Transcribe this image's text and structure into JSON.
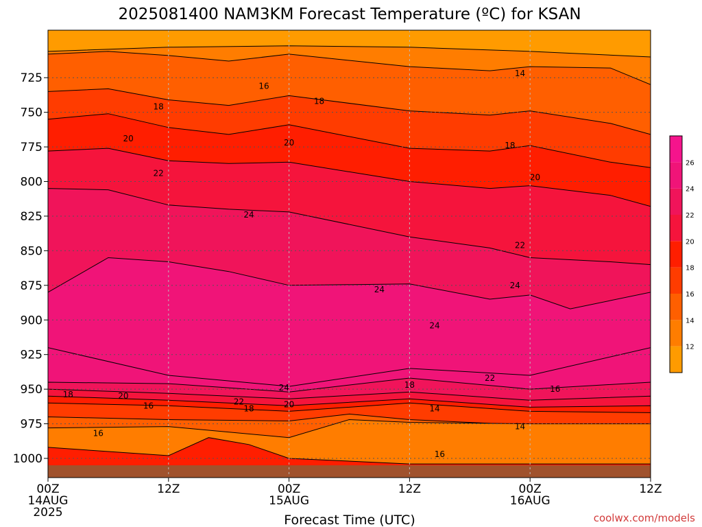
{
  "chart_data": {
    "type": "heatmap",
    "title": "2025081400 NAM3KM Forecast Temperature (ºC) for KSAN",
    "xlabel": "Forecast Time (UTC)",
    "ylabel": "",
    "credit": "coolwx.com/models",
    "x_range_hours": [
      0,
      60
    ],
    "y_range_hpa": [
      700,
      1020
    ],
    "y_ticks": [
      {
        "p": 725,
        "label": "725"
      },
      {
        "p": 750,
        "label": "750"
      },
      {
        "p": 775,
        "label": "775"
      },
      {
        "p": 800,
        "label": "800"
      },
      {
        "p": 825,
        "label": "825"
      },
      {
        "p": 850,
        "label": "850"
      },
      {
        "p": 875,
        "label": "875"
      },
      {
        "p": 900,
        "label": "900"
      },
      {
        "p": 925,
        "label": "925"
      },
      {
        "p": 950,
        "label": "950"
      },
      {
        "p": 975,
        "label": "975"
      },
      {
        "p": 1000,
        "label": "1000"
      }
    ],
    "x_ticks": [
      {
        "h": 0,
        "lines": [
          "00Z",
          "14AUG",
          "2025"
        ]
      },
      {
        "h": 12,
        "lines": [
          "12Z"
        ]
      },
      {
        "h": 24,
        "lines": [
          "00Z",
          "15AUG"
        ]
      },
      {
        "h": 36,
        "lines": [
          "12Z"
        ]
      },
      {
        "h": 48,
        "lines": [
          "00Z",
          "16AUG"
        ]
      },
      {
        "h": 60,
        "lines": [
          "12Z"
        ]
      }
    ],
    "grid": "dotted",
    "colorbar": {
      "placement": "right",
      "bins": [
        {
          "min": 10,
          "max": 12,
          "color": "#ff9b00"
        },
        {
          "min": 12,
          "max": 14,
          "color": "#ff7d00"
        },
        {
          "min": 14,
          "max": 16,
          "color": "#ff5f00"
        },
        {
          "min": 16,
          "max": 18,
          "color": "#ff3c00"
        },
        {
          "min": 18,
          "max": 20,
          "color": "#ff1e00"
        },
        {
          "min": 20,
          "max": 22,
          "color": "#f5143c"
        },
        {
          "min": 22,
          "max": 24,
          "color": "#f0145a"
        },
        {
          "min": 24,
          "max": 26,
          "color": "#f01478"
        },
        {
          "min": 26,
          "max": 28,
          "color": "#f5148c"
        }
      ],
      "tick_labels": [
        "12",
        "14",
        "16",
        "18",
        "20",
        "22",
        "24",
        "26"
      ]
    },
    "ground_color": "#a0522d",
    "ground_top_hpa_approx": 1005,
    "temperature_bands": [
      {
        "color": "#ff7d00",
        "top": [
          [
            0,
            706
          ],
          [
            12,
            703
          ],
          [
            24,
            702
          ],
          [
            36,
            703
          ],
          [
            48,
            706
          ],
          [
            60,
            710
          ]
        ]
      },
      {
        "color": "#ff5f00",
        "top": [
          [
            0,
            708
          ],
          [
            6,
            706
          ],
          [
            12,
            709
          ],
          [
            18,
            713
          ],
          [
            24,
            708
          ],
          [
            36,
            717
          ],
          [
            44,
            720
          ],
          [
            48,
            717
          ],
          [
            56,
            718
          ],
          [
            60,
            730
          ]
        ]
      },
      {
        "color": "#ff3c00",
        "top": [
          [
            0,
            735
          ],
          [
            6,
            733
          ],
          [
            12,
            741
          ],
          [
            18,
            745
          ],
          [
            24,
            738
          ],
          [
            36,
            749
          ],
          [
            44,
            752
          ],
          [
            48,
            749
          ],
          [
            56,
            758
          ],
          [
            60,
            766
          ]
        ]
      },
      {
        "color": "#ff1e00",
        "top": [
          [
            0,
            755
          ],
          [
            6,
            751
          ],
          [
            12,
            761
          ],
          [
            18,
            766
          ],
          [
            24,
            759
          ],
          [
            36,
            776
          ],
          [
            44,
            778
          ],
          [
            48,
            774
          ],
          [
            56,
            786
          ],
          [
            60,
            790
          ]
        ]
      },
      {
        "color": "#f5143c",
        "top": [
          [
            0,
            778
          ],
          [
            6,
            776
          ],
          [
            12,
            785
          ],
          [
            18,
            787
          ],
          [
            24,
            786
          ],
          [
            36,
            800
          ],
          [
            44,
            805
          ],
          [
            48,
            803
          ],
          [
            56,
            810
          ],
          [
            60,
            818
          ]
        ]
      },
      {
        "color": "#f0145a",
        "top": [
          [
            0,
            805
          ],
          [
            6,
            806
          ],
          [
            12,
            817
          ],
          [
            18,
            820
          ],
          [
            24,
            822
          ],
          [
            36,
            840
          ],
          [
            44,
            848
          ],
          [
            48,
            855
          ],
          [
            56,
            858
          ],
          [
            60,
            860
          ]
        ]
      },
      {
        "color": "#f01478",
        "top": [
          [
            0,
            880
          ],
          [
            6,
            855
          ],
          [
            12,
            858
          ],
          [
            18,
            865
          ],
          [
            24,
            875
          ],
          [
            36,
            874
          ],
          [
            44,
            885
          ],
          [
            48,
            882
          ],
          [
            52,
            892
          ],
          [
            60,
            880
          ]
        ]
      }
    ],
    "low_level_bands": [
      {
        "color": "#f01478",
        "top": [
          [
            0,
            920
          ],
          [
            12,
            940
          ],
          [
            24,
            948
          ],
          [
            36,
            935
          ],
          [
            48,
            940
          ],
          [
            60,
            920
          ]
        ]
      },
      {
        "color": "#f0145a",
        "top": [
          [
            0,
            945
          ],
          [
            12,
            946
          ],
          [
            24,
            952
          ],
          [
            36,
            942
          ],
          [
            48,
            950
          ],
          [
            60,
            945
          ]
        ]
      },
      {
        "color": "#f5143c",
        "top": [
          [
            0,
            950
          ],
          [
            12,
            953
          ],
          [
            24,
            957
          ],
          [
            36,
            952
          ],
          [
            48,
            958
          ],
          [
            60,
            955
          ]
        ]
      },
      {
        "color": "#ff1e00",
        "top": [
          [
            0,
            955
          ],
          [
            12,
            958
          ],
          [
            24,
            962
          ],
          [
            36,
            957
          ],
          [
            48,
            963
          ],
          [
            60,
            962
          ]
        ]
      },
      {
        "color": "#ff3c00",
        "top": [
          [
            0,
            960
          ],
          [
            12,
            962
          ],
          [
            24,
            966
          ],
          [
            36,
            960
          ],
          [
            48,
            966
          ],
          [
            60,
            967
          ]
        ]
      },
      {
        "color": "#ff5f00",
        "top": [
          [
            0,
            970
          ],
          [
            12,
            972
          ],
          [
            24,
            973
          ],
          [
            30,
            968
          ],
          [
            36,
            972
          ],
          [
            48,
            976
          ],
          [
            60,
            978
          ]
        ]
      },
      {
        "color": "#ff7d00",
        "top": [
          [
            0,
            978
          ],
          [
            12,
            977
          ],
          [
            24,
            985
          ],
          [
            30,
            972
          ],
          [
            36,
            974
          ],
          [
            48,
            975
          ],
          [
            60,
            975
          ]
        ]
      },
      {
        "color": "#ff1e00",
        "top": [
          [
            0,
            992
          ],
          [
            12,
            998
          ],
          [
            16,
            985
          ],
          [
            20,
            990
          ],
          [
            24,
            1000
          ],
          [
            36,
            1004
          ],
          [
            60,
            1004
          ]
        ]
      }
    ],
    "contour_labels": [
      {
        "text": "16",
        "h": 21.5,
        "p": 731
      },
      {
        "text": "14",
        "h": 47,
        "p": 722
      },
      {
        "text": "18",
        "h": 11,
        "p": 746
      },
      {
        "text": "18",
        "h": 27,
        "p": 742
      },
      {
        "text": "20",
        "h": 8,
        "p": 769
      },
      {
        "text": "20",
        "h": 24,
        "p": 772
      },
      {
        "text": "18",
        "h": 46,
        "p": 774
      },
      {
        "text": "22",
        "h": 11,
        "p": 794
      },
      {
        "text": "20",
        "h": 48.5,
        "p": 797
      },
      {
        "text": "24",
        "h": 20,
        "p": 824
      },
      {
        "text": "22",
        "h": 47,
        "p": 846
      },
      {
        "text": "24",
        "h": 33,
        "p": 878
      },
      {
        "text": "24",
        "h": 46.5,
        "p": 875
      },
      {
        "text": "24",
        "h": 38.5,
        "p": 904
      },
      {
        "text": "22",
        "h": 44,
        "p": 942
      },
      {
        "text": "24",
        "h": 23.5,
        "p": 949
      },
      {
        "text": "18",
        "h": 36,
        "p": 947
      },
      {
        "text": "16",
        "h": 50.5,
        "p": 950
      },
      {
        "text": "18",
        "h": 2,
        "p": 954
      },
      {
        "text": "20",
        "h": 7.5,
        "p": 955
      },
      {
        "text": "22",
        "h": 19,
        "p": 959
      },
      {
        "text": "20",
        "h": 24,
        "p": 961
      },
      {
        "text": "18",
        "h": 20,
        "p": 964
      },
      {
        "text": "16",
        "h": 10,
        "p": 962
      },
      {
        "text": "14",
        "h": 38.5,
        "p": 964
      },
      {
        "text": "14",
        "h": 47,
        "p": 977
      },
      {
        "text": "16",
        "h": 5,
        "p": 982
      },
      {
        "text": "16",
        "h": 39,
        "p": 997
      }
    ]
  }
}
